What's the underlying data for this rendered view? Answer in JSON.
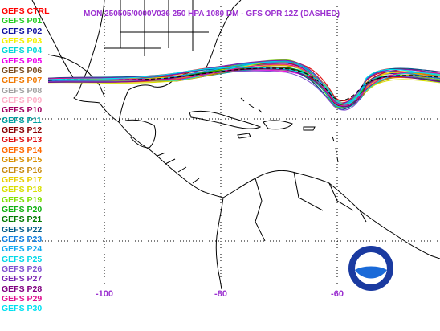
{
  "title": "MON 250505/0000V036  250 HPA 1080 DM - GFS OPR 12Z (DASHED)",
  "legend": [
    {
      "label": "GEFS CTRL",
      "color": "#ff0000"
    },
    {
      "label": "GEFS P01",
      "color": "#22cc22"
    },
    {
      "label": "GEFS P02",
      "color": "#1010a0"
    },
    {
      "label": "GEFS P03",
      "color": "#f2f200"
    },
    {
      "label": "GEFS P04",
      "color": "#00d8d8"
    },
    {
      "label": "GEFS P05",
      "color": "#ee00ee"
    },
    {
      "label": "GEFS P06",
      "color": "#7a4a1e"
    },
    {
      "label": "GEFS P07",
      "color": "#f07800"
    },
    {
      "label": "GEFS P08",
      "color": "#a0a0a0"
    },
    {
      "label": "GEFS P09",
      "color": "#ffb0c8"
    },
    {
      "label": "GEFS P10",
      "color": "#a00060"
    },
    {
      "label": "GEFS P11",
      "color": "#00a0a0"
    },
    {
      "label": "GEFS P12",
      "color": "#8b0000"
    },
    {
      "label": "GEFS P13",
      "color": "#e01010"
    },
    {
      "label": "GEFS P14",
      "color": "#ff6a00"
    },
    {
      "label": "GEFS P15",
      "color": "#d89000"
    },
    {
      "label": "GEFS P16",
      "color": "#c88a10"
    },
    {
      "label": "GEFS P17",
      "color": "#e8d000"
    },
    {
      "label": "GEFS P18",
      "color": "#d8e000"
    },
    {
      "label": "GEFS P19",
      "color": "#80e000"
    },
    {
      "label": "GEFS P20",
      "color": "#10b010"
    },
    {
      "label": "GEFS P21",
      "color": "#007800"
    },
    {
      "label": "GEFS P22",
      "color": "#005a8a"
    },
    {
      "label": "GEFS P23",
      "color": "#1080e0"
    },
    {
      "label": "GEFS P24",
      "color": "#10a8f0"
    },
    {
      "label": "GEFS P25",
      "color": "#00d8e8"
    },
    {
      "label": "GEFS P26",
      "color": "#8050d0"
    },
    {
      "label": "GEFS P27",
      "color": "#7a22b0"
    },
    {
      "label": "GEFS P28",
      "color": "#800080"
    },
    {
      "label": "GEFS P29",
      "color": "#e01090"
    },
    {
      "label": "GEFS P30",
      "color": "#00e0f0"
    }
  ],
  "longitude_labels": [
    {
      "text": "-100",
      "lon": -100
    },
    {
      "text": "-80",
      "lon": -80
    },
    {
      "text": "-60",
      "lon": -60
    }
  ],
  "logo": {
    "text": "NOAA"
  }
}
